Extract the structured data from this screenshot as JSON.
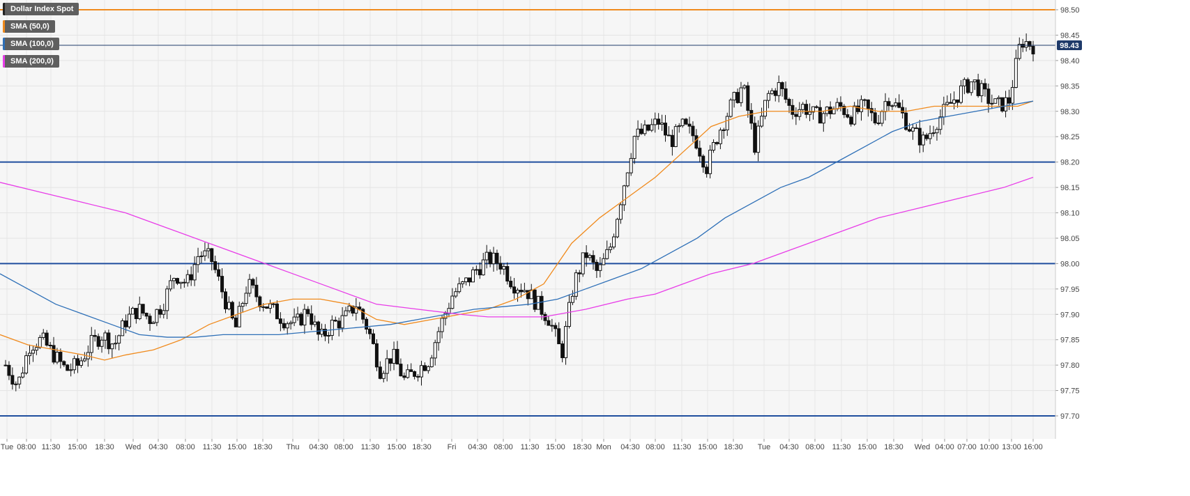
{
  "legend": [
    {
      "label": "Dollar Index Spot",
      "color": "#222222"
    },
    {
      "label": "SMA (50,0)",
      "color": "#f08a1c"
    },
    {
      "label": "SMA (100,0)",
      "color": "#2d6fb7"
    },
    {
      "label": "SMA (200,0)",
      "color": "#e83ce8"
    }
  ],
  "chart_data": {
    "type": "candlestick",
    "title": "Dollar Index Spot",
    "ylim": [
      97.65,
      98.52
    ],
    "y_ticks": [
      "98.50",
      "98.45",
      "98.40",
      "98.35",
      "98.30",
      "98.25",
      "98.20",
      "98.15",
      "98.10",
      "98.05",
      "98.00",
      "97.95",
      "97.90",
      "97.85",
      "97.80",
      "97.75",
      "97.70"
    ],
    "x_ticks": [
      "Tue",
      "08:00",
      "11:30",
      "15:00",
      "18:30",
      "Wed",
      "04:30",
      "08:00",
      "11:30",
      "15:00",
      "18:30",
      "Thu",
      "04:30",
      "08:00",
      "11:30",
      "15:00",
      "18:30",
      "Fri",
      "04:30",
      "08:00",
      "11:30",
      "15:00",
      "18:30",
      "Mon",
      "04:30",
      "08:00",
      "11:30",
      "15:00",
      "18:30",
      "Tue",
      "04:30",
      "08:00",
      "11:30",
      "15:00",
      "18:30",
      "Wed",
      "04:00",
      "07:00",
      "10:00",
      "13:00",
      "16:00"
    ],
    "last_price": 98.43,
    "last_price_label": "98.43",
    "horizontal_lines": [
      {
        "value": 98.5,
        "color": "#f08a1c"
      },
      {
        "value": 98.2,
        "color": "#1f4e9e"
      },
      {
        "value": 98.0,
        "color": "#1f4e9e"
      },
      {
        "value": 97.7,
        "color": "#1f4e9e"
      }
    ],
    "close_path": [
      97.8,
      97.76,
      97.84,
      97.85,
      97.82,
      97.79,
      97.8,
      97.84,
      97.86,
      97.84,
      97.89,
      97.91,
      97.89,
      97.92,
      97.98,
      97.96,
      98.02,
      98.01,
      97.94,
      97.87,
      97.96,
      97.93,
      97.91,
      97.89,
      97.88,
      97.91,
      97.85,
      97.88,
      97.89,
      97.92,
      97.87,
      97.79,
      97.82,
      97.77,
      97.79,
      97.81,
      97.88,
      97.94,
      97.96,
      97.99,
      98.01,
      98.0,
      97.96,
      97.95,
      97.92,
      97.89,
      97.82,
      97.96,
      98.02,
      97.98,
      98.03,
      98.14,
      98.25,
      98.26,
      98.28,
      98.24,
      98.27,
      98.25,
      98.19,
      98.26,
      98.31,
      98.35,
      98.23,
      98.33,
      98.35,
      98.3,
      98.31,
      98.29,
      98.3,
      98.31,
      98.29,
      98.31,
      98.28,
      98.33,
      98.3,
      98.26,
      98.24,
      98.28,
      98.31,
      98.34,
      98.36,
      98.33,
      98.31,
      98.32,
      98.44,
      98.43
    ],
    "series": [
      {
        "name": "SMA (50,0)",
        "color": "#f08a1c",
        "x": [
          0,
          40,
          80,
          120,
          150,
          180,
          220,
          260,
          300,
          340,
          380,
          420,
          460,
          500,
          540,
          580,
          620,
          660,
          700,
          740,
          780,
          820,
          860,
          900,
          940,
          980,
          1020,
          1060,
          1100,
          1140,
          1180,
          1220,
          1260,
          1300,
          1340,
          1380,
          1420,
          1460,
          1482
        ],
        "values": [
          97.86,
          97.84,
          97.83,
          97.82,
          97.81,
          97.82,
          97.83,
          97.85,
          97.88,
          97.9,
          97.92,
          97.93,
          97.93,
          97.92,
          97.89,
          97.88,
          97.89,
          97.9,
          97.91,
          97.93,
          97.96,
          98.04,
          98.09,
          98.13,
          98.17,
          98.22,
          98.27,
          98.29,
          98.3,
          98.3,
          98.3,
          98.31,
          98.3,
          98.3,
          98.31,
          98.31,
          98.31,
          98.31,
          98.32
        ]
      },
      {
        "name": "SMA (100,0)",
        "color": "#2d6fb7",
        "x": [
          0,
          40,
          80,
          120,
          160,
          200,
          240,
          280,
          320,
          360,
          400,
          440,
          480,
          520,
          560,
          600,
          640,
          680,
          720,
          760,
          800,
          840,
          880,
          920,
          960,
          1000,
          1040,
          1080,
          1120,
          1160,
          1200,
          1240,
          1280,
          1320,
          1360,
          1400,
          1440,
          1482
        ],
        "values": [
          97.98,
          97.95,
          97.92,
          97.9,
          97.88,
          97.86,
          97.855,
          97.855,
          97.86,
          97.86,
          97.86,
          97.865,
          97.87,
          97.875,
          97.88,
          97.89,
          97.9,
          97.91,
          97.915,
          97.92,
          97.93,
          97.95,
          97.97,
          97.99,
          98.02,
          98.05,
          98.09,
          98.12,
          98.15,
          98.17,
          98.2,
          98.23,
          98.26,
          98.28,
          98.29,
          98.3,
          98.31,
          98.32
        ]
      },
      {
        "name": "SMA (200,0)",
        "color": "#e83ce8",
        "x": [
          0,
          60,
          120,
          180,
          240,
          300,
          360,
          420,
          480,
          540,
          600,
          660,
          700,
          740,
          780,
          800,
          840,
          900,
          940,
          980,
          1020,
          1080,
          1140,
          1200,
          1260,
          1320,
          1380,
          1440,
          1482
        ],
        "values": [
          98.16,
          98.14,
          98.12,
          98.1,
          98.07,
          98.04,
          98.01,
          97.98,
          97.95,
          97.92,
          97.91,
          97.9,
          97.895,
          97.895,
          97.895,
          97.9,
          97.91,
          97.93,
          97.94,
          97.96,
          97.98,
          98.0,
          98.03,
          98.06,
          98.09,
          98.11,
          98.13,
          98.15,
          98.17
        ]
      }
    ]
  }
}
